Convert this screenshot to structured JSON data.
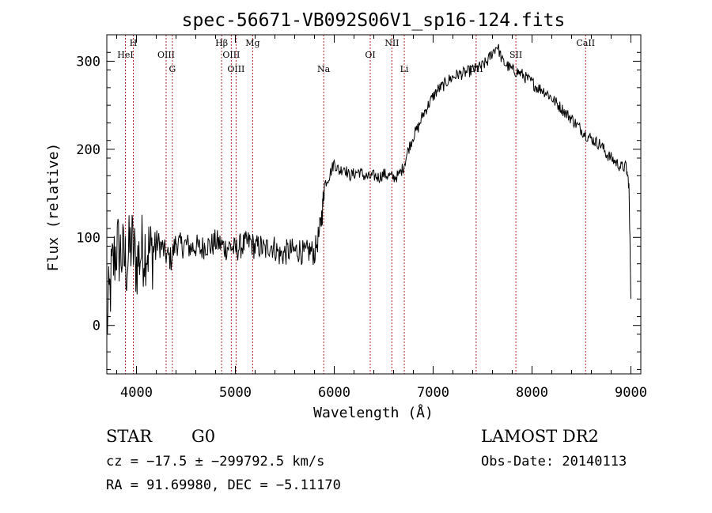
{
  "chart_data": {
    "type": "line",
    "title": "spec-56671-VB092S06V1_sp16-124.fits",
    "xlabel": "Wavelength (Å)",
    "ylabel": "Flux (relative)",
    "xlim": [
      3700,
      9100
    ],
    "ylim": [
      -55,
      330
    ],
    "xticks": [
      4000,
      5000,
      6000,
      7000,
      8000,
      9000
    ],
    "yticks": [
      0,
      100,
      200,
      300
    ],
    "grid": false,
    "series": [
      {
        "color": "#000000",
        "x": [
          3700,
          3750,
          3800,
          3850,
          3900,
          3950,
          4000,
          4050,
          4100,
          4150,
          4200,
          4250,
          4300,
          4350,
          4400,
          4450,
          4500,
          4550,
          4600,
          4650,
          4700,
          4750,
          4800,
          4850,
          4900,
          4950,
          5000,
          5050,
          5100,
          5150,
          5200,
          5250,
          5300,
          5350,
          5400,
          5450,
          5500,
          5550,
          5600,
          5650,
          5700,
          5750,
          5800,
          5850,
          5880,
          5900,
          5950,
          6000,
          6050,
          6100,
          6150,
          6200,
          6250,
          6300,
          6350,
          6400,
          6450,
          6500,
          6550,
          6600,
          6650,
          6700,
          6750,
          6800,
          6850,
          6900,
          6950,
          7000,
          7050,
          7100,
          7150,
          7200,
          7250,
          7300,
          7350,
          7400,
          7450,
          7500,
          7550,
          7600,
          7650,
          7700,
          7750,
          7800,
          7850,
          7900,
          7950,
          8000,
          8050,
          8100,
          8150,
          8200,
          8250,
          8300,
          8350,
          8400,
          8450,
          8500,
          8550,
          8600,
          8650,
          8700,
          8750,
          8800,
          8850,
          8900,
          8950,
          8980,
          9000
        ],
        "y": [
          0,
          60,
          90,
          80,
          70,
          95,
          70,
          85,
          90,
          80,
          95,
          90,
          80,
          75,
          95,
          90,
          92,
          88,
          90,
          86,
          92,
          90,
          95,
          92,
          88,
          90,
          85,
          90,
          92,
          95,
          88,
          90,
          85,
          92,
          88,
          80,
          82,
          85,
          84,
          86,
          80,
          85,
          82,
          105,
          130,
          160,
          170,
          185,
          175,
          180,
          170,
          172,
          175,
          170,
          168,
          170,
          168,
          172,
          170,
          168,
          170,
          180,
          200,
          215,
          225,
          240,
          250,
          260,
          268,
          272,
          278,
          282,
          285,
          286,
          288,
          290,
          292,
          295,
          300,
          310,
          318,
          300,
          295,
          290,
          288,
          285,
          280,
          276,
          270,
          268,
          264,
          258,
          252,
          246,
          240,
          235,
          228,
          222,
          216,
          212,
          208,
          205,
          195,
          190,
          185,
          180,
          180,
          160,
          30
        ]
      }
    ],
    "line_labels": [
      {
        "label": "HeI",
        "x": 3888
      },
      {
        "label": "H",
        "x": 3968
      },
      {
        "label": "OIII",
        "x": 4300
      },
      {
        "label": "G",
        "x": 4363
      },
      {
        "label": "Hβ",
        "x": 4861
      },
      {
        "label": "OIII",
        "x": 4959
      },
      {
        "label": "OIII",
        "x": 5007
      },
      {
        "label": "Mg",
        "x": 5175
      },
      {
        "label": "Na",
        "x": 5893
      },
      {
        "label": "OI",
        "x": 6364
      },
      {
        "label": "NII",
        "x": 6583
      },
      {
        "label": "Li",
        "x": 6708
      },
      {
        "label": "OII",
        "x": 7435
      },
      {
        "label": "SII",
        "x": 7837
      },
      {
        "label": "CaII",
        "x": 8542
      }
    ]
  },
  "info": {
    "object_class": "STAR",
    "subclass": "G0",
    "survey": "LAMOST DR2",
    "cz": "cz = −17.5 ± −299792.5 km/s",
    "obs_date": "Obs-Date: 20140113",
    "radec": "RA =  91.69980, DEC =  −5.11170"
  }
}
